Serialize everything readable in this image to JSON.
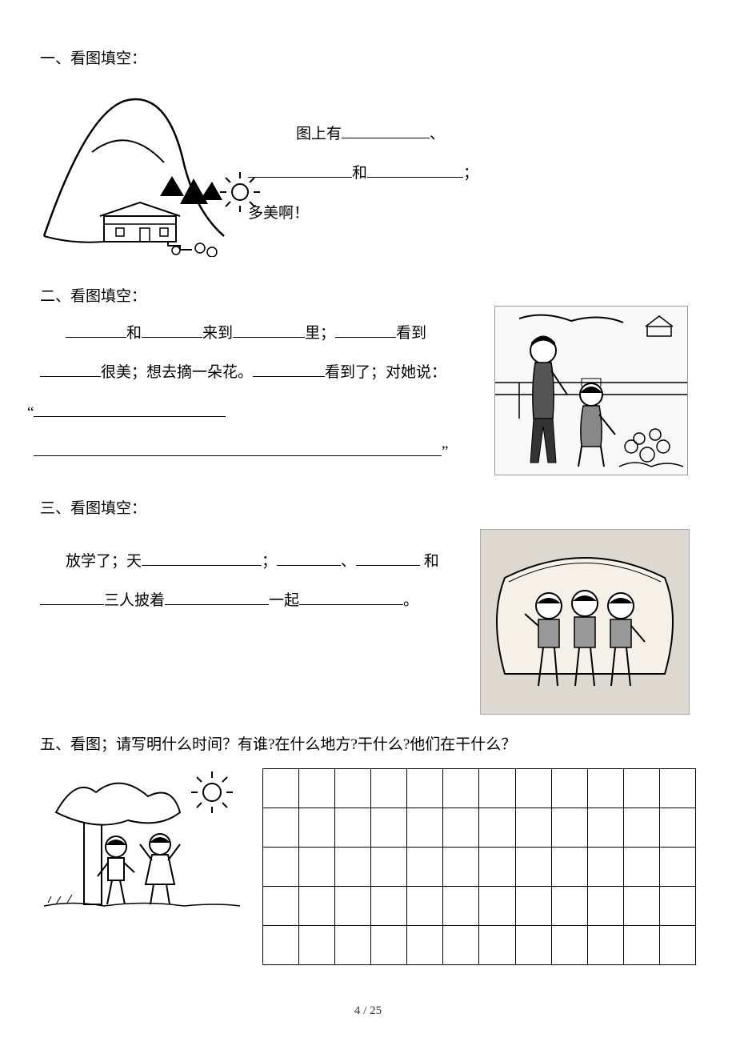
{
  "q1": {
    "title": "一、看图填空：",
    "line1_pre": "图上有",
    "line1_post": "、",
    "line2_mid": "和",
    "line2_post": "；",
    "line3": "多美啊！",
    "blank_w1": 110,
    "blank_w2": 130,
    "blank_w3": 120
  },
  "q2": {
    "title": "二、看图填空：",
    "t1": "和",
    "t2": "来到",
    "t3": "里；",
    "t4": "看到",
    "t5": "很美；想去摘一朵花。",
    "t6": "看到了；对她说：",
    "quote_open": "“",
    "quote_close": "”",
    "blank_s": 76,
    "blank_m": 90,
    "blank_l": 240,
    "blank_xl": 510
  },
  "q3": {
    "title": "三、看图填空：",
    "t1": "放学了；天",
    "t2": "；",
    "t3": "、",
    "t4": " 和",
    "t5": "三人披着",
    "t6": "一起",
    "t7": "。",
    "blank_s": 80,
    "blank_m": 130,
    "blank_l": 150
  },
  "q5": {
    "title": "五、看图；请写明什么时间？有谁?在什么地方?干什么?他们在干什么？",
    "grid_rows": 5,
    "grid_cols": 12
  },
  "footer": "4 / 25",
  "colors": {
    "text": "#000000",
    "bg": "#ffffff",
    "border": "#000000"
  }
}
